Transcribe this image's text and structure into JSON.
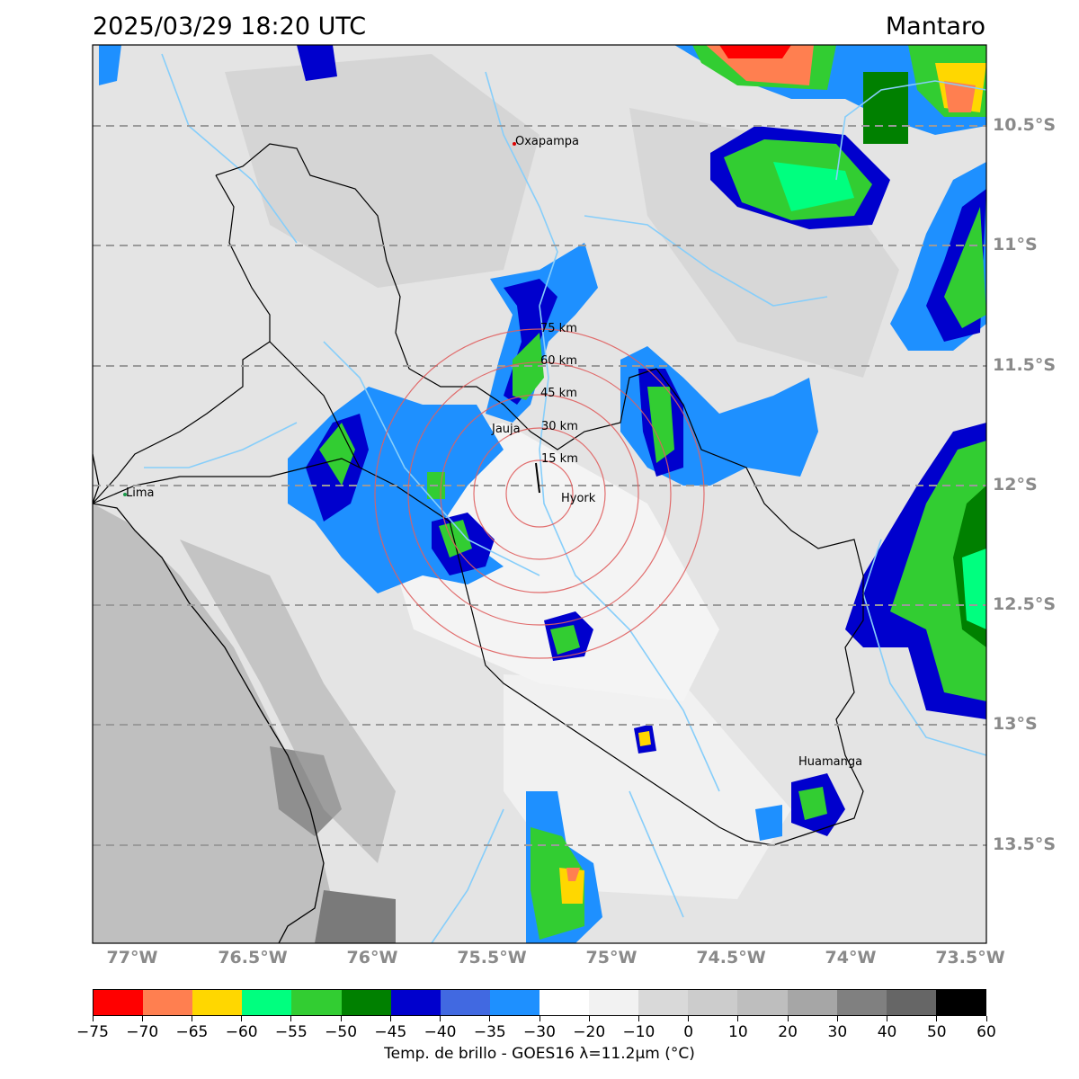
{
  "title": {
    "datetime": "2025/03/29 18:20 UTC",
    "region": "Mantaro"
  },
  "map": {
    "lon_range": [
      -77.2,
      -73.5
    ],
    "lat_range": [
      -13.95,
      -10.2
    ],
    "lat_ticks": [
      "10.5°S",
      "11°S",
      "11.5°S",
      "12°S",
      "12.5°S",
      "13°S",
      "13.5°S"
    ],
    "lon_ticks": [
      "77°W",
      "76.5°W",
      "76°W",
      "75.5°W",
      "75°W",
      "74.5°W",
      "74°W",
      "73.5°W"
    ],
    "places": [
      {
        "name": "Oxapampa",
        "lon": -75.4,
        "lat": -10.58
      },
      {
        "name": "Jauja",
        "lon": -75.5,
        "lat": -11.78
      },
      {
        "name": "Lima",
        "lon": -77.03,
        "lat": -12.05
      },
      {
        "name": "Hyork",
        "lon": -75.32,
        "lat": -12.04
      },
      {
        "name": "Huamanga",
        "lon": -74.22,
        "lat": -13.16
      }
    ],
    "range_rings": [
      "15 km",
      "30 km",
      "45 km",
      "60 km",
      "75 km"
    ],
    "ring_center": {
      "lon": -75.32,
      "lat": -12.04
    },
    "colors": {
      "coast_sea": "#bebebe",
      "rings": "#e06060",
      "rivers": "#87cefa",
      "grid": "#9a9a9a"
    }
  },
  "colorbar": {
    "title": "Temp. de brillo - GOES16 λ=11.2μm (°C)",
    "ticks": [
      "−75",
      "−70",
      "−65",
      "−60",
      "−55",
      "−50",
      "−45",
      "−40",
      "−35",
      "−30",
      "−20",
      "−10",
      "0",
      "10",
      "20",
      "30",
      "40",
      "50",
      "60"
    ],
    "colors": [
      "#ff0000",
      "#ff7f50",
      "#ffd700",
      "#00ff7f",
      "#32cd32",
      "#008000",
      "#0000cd",
      "#4169e1",
      "#1e90ff",
      "#ffffff",
      "#f2f2f2",
      "#d9d9d9",
      "#cccccc",
      "#bebebe",
      "#a6a6a6",
      "#808080",
      "#666666",
      "#000000"
    ]
  }
}
